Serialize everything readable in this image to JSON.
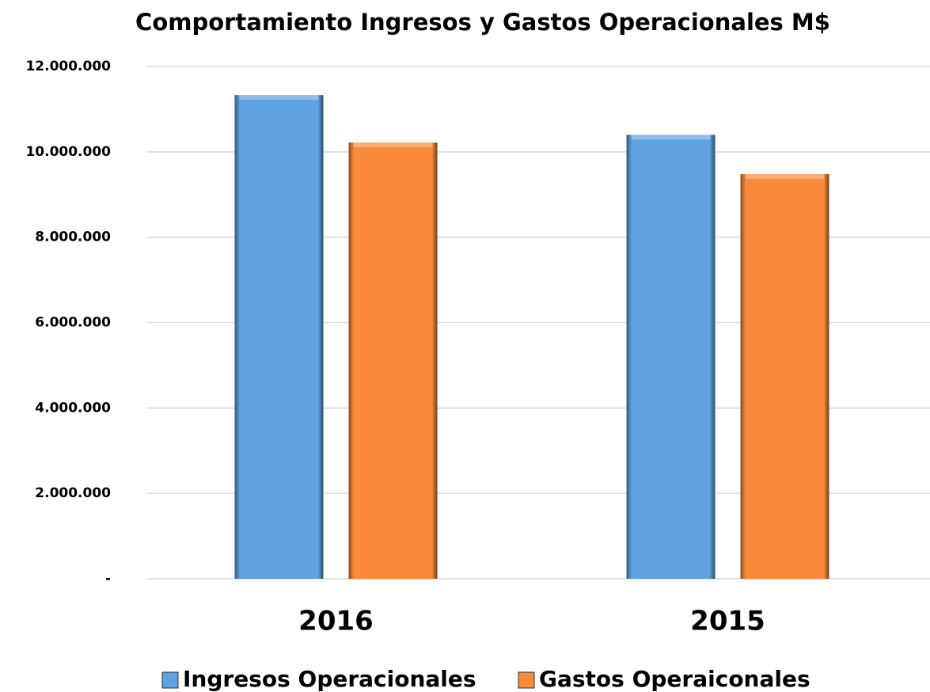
{
  "chart_data": {
    "type": "bar",
    "title": "Comportamiento Ingresos y Gastos Operacionales M$",
    "categories": [
      "2016",
      "2015"
    ],
    "series": [
      {
        "name": "Ingresos Operacionales",
        "color": "#5fa3e0",
        "values": [
          11330000,
          10400000
        ]
      },
      {
        "name": "Gastos Operaiconales",
        "color": "#f98a3a",
        "values": [
          10220000,
          9480000
        ]
      }
    ],
    "ylim": [
      0,
      12000000
    ],
    "yticks": [
      {
        "value": 0,
        "label": "-"
      },
      {
        "value": 2000000,
        "label": "2.000.000"
      },
      {
        "value": 4000000,
        "label": "4.000.000"
      },
      {
        "value": 6000000,
        "label": "6.000.000"
      },
      {
        "value": 8000000,
        "label": "8.000.000"
      },
      {
        "value": 10000000,
        "label": "10.000.000"
      },
      {
        "value": 12000000,
        "label": "12.000.000"
      }
    ],
    "grid": true,
    "legend": "bottom"
  }
}
